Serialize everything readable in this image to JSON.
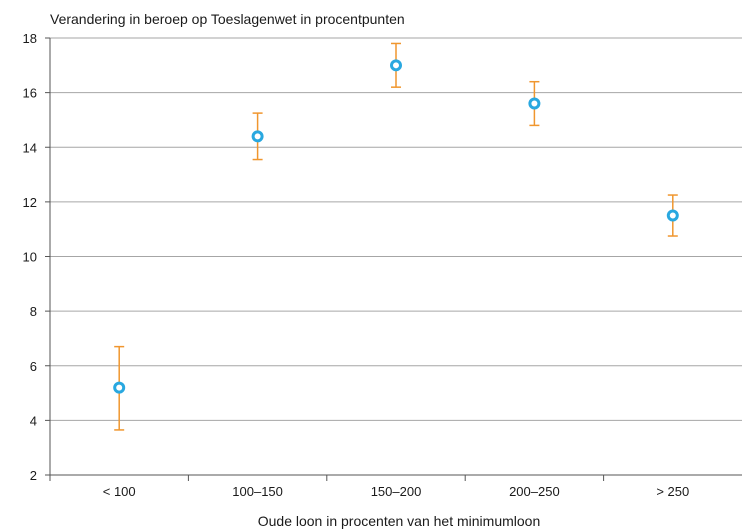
{
  "chart_data": {
    "type": "scatter",
    "title": "",
    "ylabel": "Verandering in beroep op Toeslagenwet in procentpunten",
    "xlabel": "Oude loon in procenten van het minimumloon",
    "categories": [
      "< 100",
      "100–150",
      "150–200",
      "200–250",
      "> 250"
    ],
    "values": [
      5.2,
      14.4,
      17.0,
      15.6,
      11.5
    ],
    "error_low": [
      3.65,
      13.55,
      16.2,
      14.8,
      10.75
    ],
    "error_high": [
      6.7,
      15.25,
      17.8,
      16.4,
      12.25
    ],
    "ylim": [
      2,
      18
    ],
    "yticks": [
      "2",
      "4",
      "6",
      "8",
      "10",
      "12",
      "14",
      "16",
      "18"
    ],
    "grid": true,
    "legend": "none",
    "colors": {
      "point": "#29a8e0",
      "errorbar": "#f0962e",
      "grid": "#a6a6a6"
    }
  }
}
